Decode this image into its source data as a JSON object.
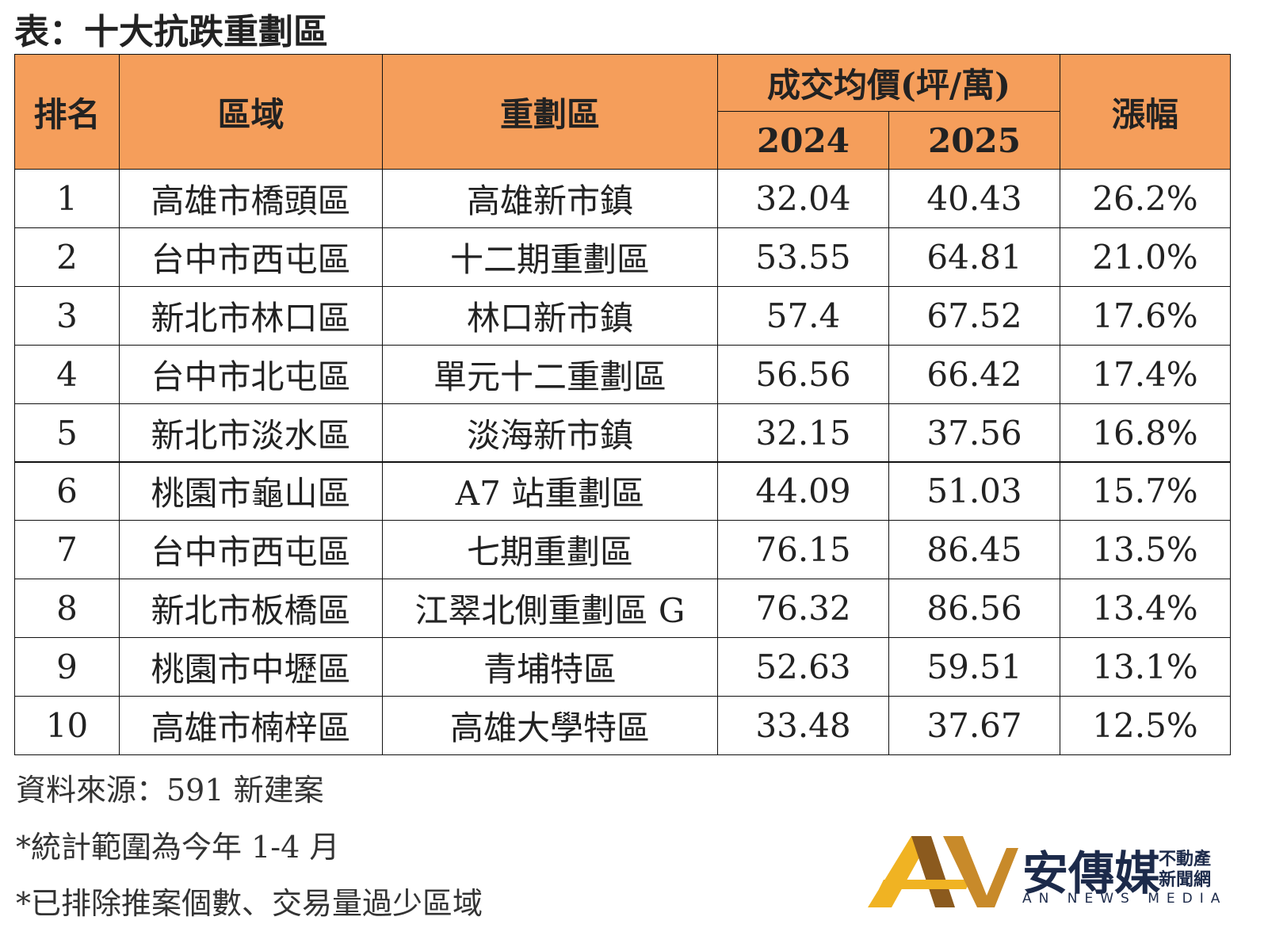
{
  "title": "表：十大抗跌重劃區",
  "table": {
    "headers": {
      "rank": "排名",
      "district": "區域",
      "zone": "重劃區",
      "price": "成交均價(坪/萬)",
      "year1": "2024",
      "year2": "2025",
      "growth": "漲幅"
    },
    "rows": [
      [
        "1",
        "高雄市橋頭區",
        "高雄新市鎮",
        "32.04",
        "40.43",
        "26.2%"
      ],
      [
        "2",
        "台中市西屯區",
        "十二期重劃區",
        "53.55",
        "64.81",
        "21.0%"
      ],
      [
        "3",
        "新北市林口區",
        "林口新市鎮",
        "57.4",
        "67.52",
        "17.6%"
      ],
      [
        "4",
        "台中市北屯區",
        "單元十二重劃區",
        "56.56",
        "66.42",
        "17.4%"
      ],
      [
        "5",
        "新北市淡水區",
        "淡海新市鎮",
        "32.15",
        "37.56",
        "16.8%"
      ],
      [
        "6",
        "桃園市龜山區",
        "A7 站重劃區",
        "44.09",
        "51.03",
        "15.7%"
      ],
      [
        "7",
        "台中市西屯區",
        "七期重劃區",
        "76.15",
        "86.45",
        "13.5%"
      ],
      [
        "8",
        "新北市板橋區",
        "江翠北側重劃區 G",
        "76.32",
        "86.56",
        "13.4%"
      ],
      [
        "9",
        "桃園市中壢區",
        "青埔特區",
        "52.63",
        "59.51",
        "13.1%"
      ],
      [
        "10",
        "高雄市楠梓區",
        "高雄大學特區",
        "33.48",
        "37.67",
        "12.5%"
      ]
    ]
  },
  "notes": [
    "資料來源：591 新建案",
    "*統計範圍為今年 1-4 月",
    "*已排除推案個數、交易量過少區域"
  ],
  "logo": {
    "name": "安傳媒",
    "tag1": "不動產",
    "tag2": "新聞網",
    "english": "AN NEWS MEDIA"
  }
}
